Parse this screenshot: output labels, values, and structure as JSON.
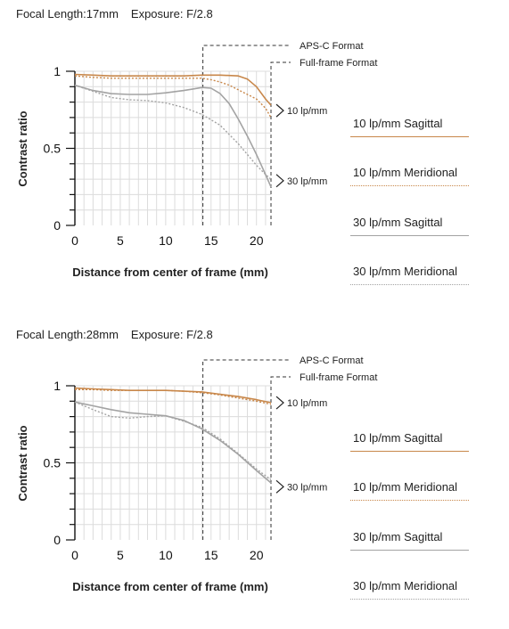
{
  "chart_data": [
    {
      "type": "line",
      "focal_label": "Focal Length:",
      "focal_value": "17mm",
      "exposure_label": "Exposure:",
      "exposure_value": "F/2.8",
      "ylabel": "Contrast ratio",
      "xlabel": "Distance from center of frame (mm)",
      "xlim": [
        0,
        21.6
      ],
      "ylim": [
        0,
        1
      ],
      "xticks": [
        0,
        5,
        10,
        15,
        20
      ],
      "yticks": [
        0,
        0.5,
        1
      ],
      "ytick_labels": [
        "0",
        "0.5",
        "1"
      ],
      "grid": true,
      "apsc_x": 14.1,
      "fullframe_x": 21.6,
      "apsc_label": "APS-C Format",
      "fullframe_label": "Full-frame Format",
      "freq_label_10": "10 lp/mm",
      "freq_label_30": "30 lp/mm",
      "freq_10_y": 0.745,
      "freq_30_y": 0.29,
      "series": [
        {
          "name": "10 lp/mm Sagittal",
          "color": "#c8874a",
          "dash": "solid",
          "x": [
            0,
            2,
            4,
            6,
            8,
            10,
            12,
            14,
            16,
            18,
            19,
            20,
            21,
            21.6
          ],
          "y": [
            0.98,
            0.975,
            0.97,
            0.97,
            0.97,
            0.97,
            0.97,
            0.975,
            0.975,
            0.97,
            0.95,
            0.9,
            0.82,
            0.78
          ]
        },
        {
          "name": "10 lp/mm Meridional",
          "color": "#c8874a",
          "dash": "dotted",
          "x": [
            0,
            2,
            4,
            6,
            8,
            10,
            12,
            14,
            15,
            16,
            17,
            18,
            19,
            20,
            21,
            21.6
          ],
          "y": [
            0.97,
            0.96,
            0.955,
            0.955,
            0.955,
            0.955,
            0.955,
            0.955,
            0.945,
            0.93,
            0.91,
            0.88,
            0.85,
            0.82,
            0.76,
            0.7
          ]
        },
        {
          "name": "30 lp/mm Sagittal",
          "color": "#a3a3a3",
          "dash": "solid",
          "x": [
            0,
            2,
            4,
            6,
            8,
            10,
            12,
            13,
            14,
            15,
            16,
            17,
            18,
            19,
            20,
            21,
            21.6
          ],
          "y": [
            0.91,
            0.875,
            0.855,
            0.85,
            0.85,
            0.86,
            0.875,
            0.885,
            0.895,
            0.89,
            0.855,
            0.79,
            0.69,
            0.58,
            0.46,
            0.33,
            0.25
          ]
        },
        {
          "name": "30 lp/mm Meridional",
          "color": "#a3a3a3",
          "dash": "dotted",
          "x": [
            0,
            2,
            4,
            6,
            8,
            10,
            12,
            14,
            16,
            18,
            19,
            20,
            21,
            21.6
          ],
          "y": [
            0.91,
            0.87,
            0.83,
            0.815,
            0.81,
            0.795,
            0.765,
            0.72,
            0.65,
            0.53,
            0.46,
            0.39,
            0.33,
            0.3
          ]
        }
      ]
    },
    {
      "type": "line",
      "focal_label": "Focal Length:",
      "focal_value": "28mm",
      "exposure_label": "Exposure:",
      "exposure_value": "F/2.8",
      "ylabel": "Contrast ratio",
      "xlabel": "Distance from center of frame (mm)",
      "xlim": [
        0,
        21.6
      ],
      "ylim": [
        0,
        1
      ],
      "xticks": [
        0,
        5,
        10,
        15,
        20
      ],
      "yticks": [
        0,
        0.5,
        1
      ],
      "ytick_labels": [
        "0",
        "0.5",
        "1"
      ],
      "grid": true,
      "apsc_x": 14.1,
      "fullframe_x": 21.6,
      "apsc_label": "APS-C Format",
      "fullframe_label": "Full-frame Format",
      "freq_label_10": "10 lp/mm",
      "freq_label_30": "30 lp/mm",
      "freq_10_y": 0.89,
      "freq_30_y": 0.345,
      "series": [
        {
          "name": "10 lp/mm Sagittal",
          "color": "#c8874a",
          "dash": "solid",
          "x": [
            0,
            2,
            4,
            6,
            8,
            10,
            12,
            14,
            16,
            18,
            20,
            21.6
          ],
          "y": [
            0.985,
            0.98,
            0.975,
            0.97,
            0.97,
            0.97,
            0.965,
            0.96,
            0.945,
            0.93,
            0.91,
            0.89
          ]
        },
        {
          "name": "10 lp/mm Meridional",
          "color": "#c8874a",
          "dash": "dotted",
          "x": [
            0,
            2,
            4,
            6,
            8,
            10,
            12,
            14,
            16,
            18,
            20,
            21.6
          ],
          "y": [
            0.975,
            0.975,
            0.97,
            0.97,
            0.97,
            0.97,
            0.965,
            0.955,
            0.94,
            0.92,
            0.9,
            0.88
          ]
        },
        {
          "name": "30 lp/mm Sagittal",
          "color": "#a3a3a3",
          "dash": "solid",
          "x": [
            0,
            2,
            4,
            6,
            8,
            10,
            12,
            14,
            16,
            18,
            20,
            21.6
          ],
          "y": [
            0.895,
            0.87,
            0.845,
            0.825,
            0.815,
            0.805,
            0.775,
            0.72,
            0.645,
            0.555,
            0.45,
            0.37
          ]
        },
        {
          "name": "30 lp/mm Meridional",
          "color": "#a3a3a3",
          "dash": "dotted",
          "x": [
            0,
            2,
            4,
            6,
            8,
            10,
            12,
            14,
            16,
            18,
            20,
            21.6
          ],
          "y": [
            0.895,
            0.845,
            0.8,
            0.79,
            0.8,
            0.805,
            0.77,
            0.73,
            0.655,
            0.56,
            0.46,
            0.39
          ]
        }
      ]
    }
  ]
}
